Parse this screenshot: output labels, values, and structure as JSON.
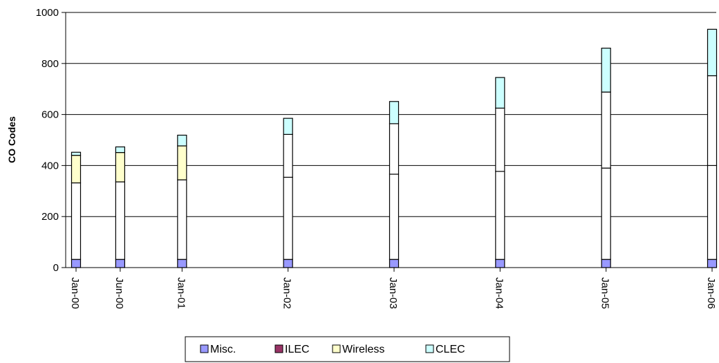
{
  "chart_data": {
    "type": "bar",
    "stacked": true,
    "title": "",
    "xlabel": "",
    "ylabel": "CO Codes",
    "ylim": [
      0,
      1000
    ],
    "yticks": [
      "0",
      "200",
      "400",
      "600",
      "800",
      "1000"
    ],
    "grid": true,
    "legend_position": "bottom",
    "categories": [
      "Jan-00",
      "Jun-00",
      "Jan-01",
      "Jan-02",
      "Jan-03",
      "Jan-04",
      "Jan-05",
      "Jan-06"
    ],
    "x_months": [
      0,
      5,
      12,
      24,
      36,
      48,
      60,
      72
    ],
    "series": [
      {
        "name": "Misc.",
        "color": "#9999ff",
        "values": [
          32,
          32,
          32,
          32,
          32,
          32,
          32,
          32
        ]
      },
      {
        "name": "",
        "color": "#ffffff",
        "values": [
          300,
          304,
          312,
          322,
          334,
          345,
          358,
          368
        ]
      },
      {
        "name": "ILEC",
        "color": "#993366",
        "values": [
          0,
          0,
          0,
          0,
          0,
          0,
          0,
          0
        ]
      },
      {
        "name": "",
        "color": "#ffffff",
        "values": [
          0,
          0,
          0,
          168,
          198,
          248,
          298,
          352
        ]
      },
      {
        "name": "Wireless",
        "color": "#ffffcc",
        "values": [
          108,
          115,
          133,
          0,
          0,
          0,
          0,
          0
        ]
      },
      {
        "name": "CLEC",
        "color": "#ccffff",
        "values": [
          12,
          22,
          42,
          63,
          87,
          120,
          172,
          182
        ]
      }
    ]
  }
}
